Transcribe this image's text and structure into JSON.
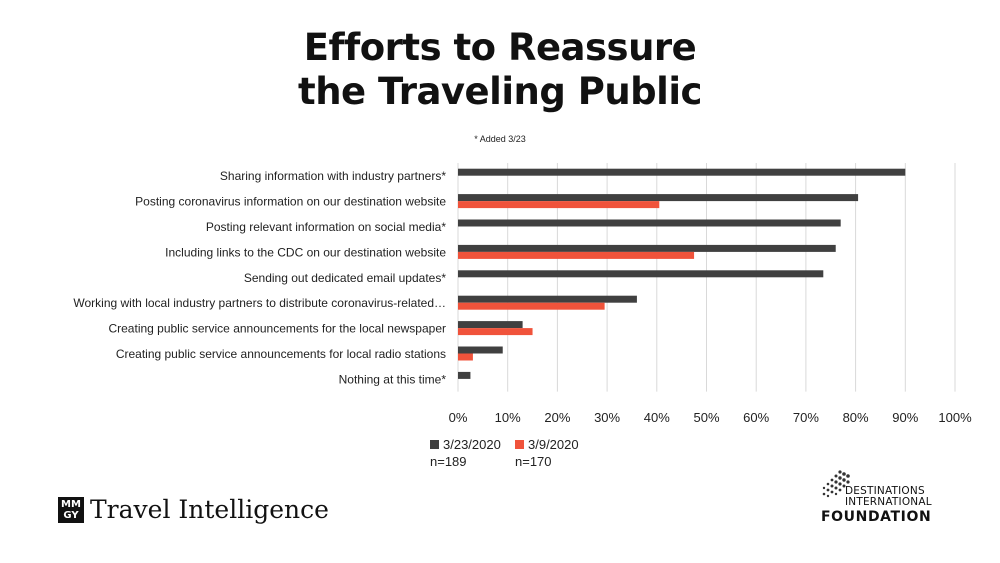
{
  "chart_data": {
    "type": "bar",
    "orientation": "horizontal",
    "title": "Efforts to Reassure the Traveling Public",
    "title_lines": [
      "Efforts to Reassure",
      "the Traveling Public"
    ],
    "note": "* Added 3/23",
    "categories": [
      "Sharing information with industry partners*",
      "Posting coronavirus information on our destination website",
      "Posting relevant information on social media*",
      "Including links to the CDC on our destination website",
      "Sending out dedicated email updates*",
      "Working with local industry partners to distribute coronavirus-related…",
      "Creating public service announcements for the local newspaper",
      "Creating public service announcements for local radio stations",
      "Nothing at this time*"
    ],
    "series": [
      {
        "name": "3/23/2020",
        "sample": "n=189",
        "color": "#404040",
        "values": [
          90,
          80.5,
          77,
          76,
          73.5,
          36,
          13,
          9,
          2.5
        ]
      },
      {
        "name": "3/9/2020",
        "sample": "n=170",
        "color": "#f0533b",
        "values": [
          null,
          40.5,
          null,
          47.5,
          null,
          29.5,
          15,
          3,
          null
        ]
      }
    ],
    "xlim": [
      0,
      100
    ],
    "xticks": [
      "0%",
      "10%",
      "20%",
      "30%",
      "40%",
      "50%",
      "60%",
      "70%",
      "80%",
      "90%",
      "100%"
    ],
    "grid": true,
    "legend_position": "bottom-left"
  },
  "logos": {
    "mmgy_mark": "MM GY",
    "mmgy_text": "Travel Intelligence",
    "di_text_line1": "DESTINATIONS",
    "di_text_line2": "INTERNATIONAL",
    "di_text_line3": "FOUNDATION"
  }
}
